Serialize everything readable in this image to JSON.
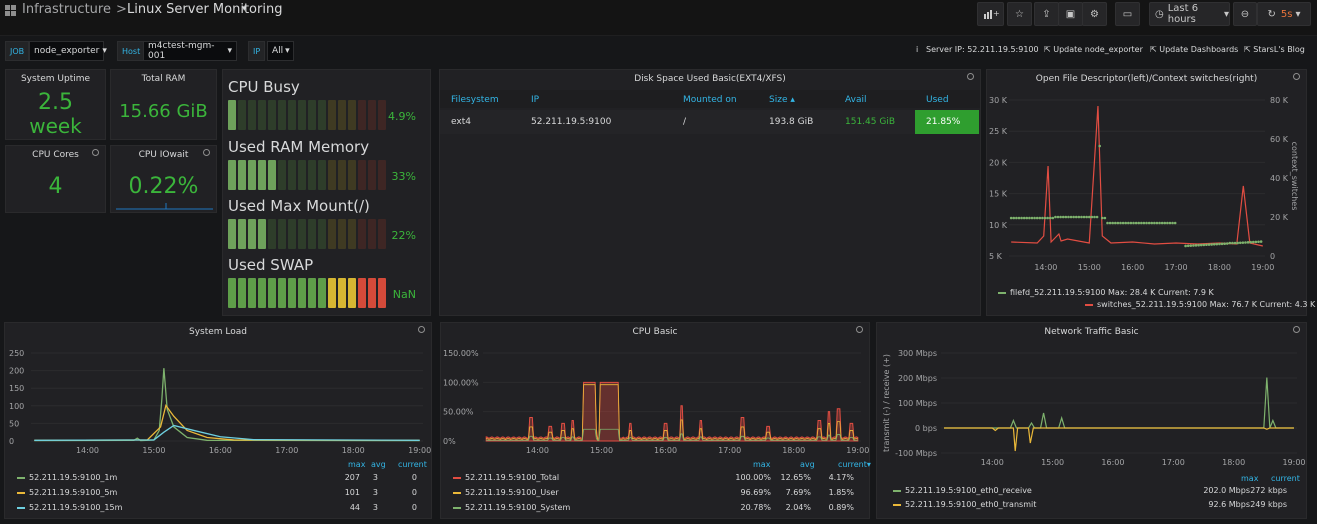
{
  "nav": {
    "folder": "Infrastructure",
    "separator": ">",
    "dashboard": "Linux Server Monitoring",
    "caret": "▾",
    "time_range": "Last 6 hours",
    "refresh": "5s"
  },
  "variables": {
    "job_label": "JOB",
    "job_value": "node_exporter",
    "host_label": "Host",
    "host_value": "m4ctest-mgm-001",
    "ip_label": "IP",
    "ip_value": "All"
  },
  "links": {
    "server_ip": "Server IP:  52.211.19.5:9100",
    "info_glyph": "i",
    "update_exporter": "Update node_exporter",
    "update_dashboards": "Update Dashboards",
    "blog": "StarsL's Blog"
  },
  "stats": {
    "uptime_title": "System Uptime",
    "uptime_value": "2.5",
    "uptime_unit": "week",
    "ram_title": "Total RAM",
    "ram_value": "15.66 GiB",
    "cores_title": "CPU Cores",
    "cores_value": "4",
    "iowait_title": "CPU IOwait",
    "iowait_value": "0.22%"
  },
  "gauges": [
    {
      "title": "CPU Busy",
      "value": "4.9%",
      "fraction": 0.049
    },
    {
      "title": "Used RAM Memory",
      "value": "33%",
      "fraction": 0.33
    },
    {
      "title": "Used Max Mount(/)",
      "value": "22%",
      "fraction": 0.22
    },
    {
      "title": "Used SWAP",
      "value": "NaN",
      "fraction": 1.0
    }
  ],
  "disk": {
    "title": "Disk Space Used Basic(EXT4/XFS)",
    "headers": [
      "Filesystem",
      "IP",
      "Mounted on",
      "Size ▴",
      "Avail",
      "Used"
    ],
    "row": [
      "ext4",
      "52.211.19.5:9100",
      "/",
      "193.8 GiB",
      "151.45 GiB",
      "21.85%"
    ]
  },
  "colors": {
    "green": "#7eb26d",
    "red": "#e24d42",
    "yellow": "#eab839",
    "cyan": "#6ed0e0",
    "stat_green": "#3bb53b",
    "accent_blue": "#33b5e5"
  },
  "fd_chart": {
    "title": "Open File Descriptor(left)/Context switches(right)",
    "left_ticks": [
      "30 K",
      "25 K",
      "20 K",
      "15 K",
      "10 K",
      "5 K"
    ],
    "right_ticks": [
      "80 K",
      "60 K",
      "40 K",
      "20 K",
      "0"
    ],
    "right_label": "context_switches",
    "x_ticks": [
      "14:00",
      "15:00",
      "16:00",
      "17:00",
      "18:00",
      "19:00"
    ],
    "legend": [
      "filefd_52.211.19.5:9100   Max: 28.4 K  Current: 7.9 K",
      "switches_52.211.19.5:9100   Max: 76.7 K  Current: 4.3 K"
    ]
  },
  "load_chart": {
    "title": "System Load",
    "y_ticks": [
      "250",
      "200",
      "150",
      "100",
      "50",
      "0"
    ],
    "x_ticks": [
      "14:00",
      "15:00",
      "16:00",
      "17:00",
      "18:00",
      "19:00"
    ],
    "legend_headers": [
      "max",
      "avg",
      "current"
    ],
    "legend": [
      {
        "name": "52.211.19.5:9100_1m",
        "max": "207",
        "avg": "3",
        "current": "0"
      },
      {
        "name": "52.211.19.5:9100_5m",
        "max": "101",
        "avg": "3",
        "current": "0"
      },
      {
        "name": "52.211.19.5:9100_15m",
        "max": "44",
        "avg": "3",
        "current": "0"
      }
    ]
  },
  "cpu_chart": {
    "title": "CPU Basic",
    "y_ticks": [
      "150.00%",
      "100.00%",
      "50.00%",
      "0%"
    ],
    "x_ticks": [
      "14:00",
      "15:00",
      "16:00",
      "17:00",
      "18:00",
      "19:00"
    ],
    "legend_headers": [
      "max",
      "avg",
      "current▾"
    ],
    "legend": [
      {
        "name": "52.211.19.5:9100_Total",
        "max": "100.00%",
        "avg": "12.65%",
        "current": "4.17%"
      },
      {
        "name": "52.211.19.5:9100_User",
        "max": "96.69%",
        "avg": "7.69%",
        "current": "1.85%"
      },
      {
        "name": "52.211.19.5:9100_System",
        "max": "20.78%",
        "avg": "2.04%",
        "current": "0.89%"
      }
    ]
  },
  "net_chart": {
    "title": "Network Traffic Basic",
    "y_ticks": [
      "300 Mbps",
      "200 Mbps",
      "100 Mbps",
      "0 bps",
      "-100 Mbps"
    ],
    "y_label": "transmit (-) / receive (+)",
    "x_ticks": [
      "14:00",
      "15:00",
      "16:00",
      "17:00",
      "18:00",
      "19:00"
    ],
    "legend_headers": [
      "max",
      "current"
    ],
    "legend": [
      {
        "name": "52.211.19.5:9100_eth0_receive",
        "max": "202.0 Mbps",
        "current": "272 kbps"
      },
      {
        "name": "52.211.19.5:9100_eth0_transmit",
        "max": "92.6 Mbps",
        "current": "249 kbps"
      }
    ]
  }
}
